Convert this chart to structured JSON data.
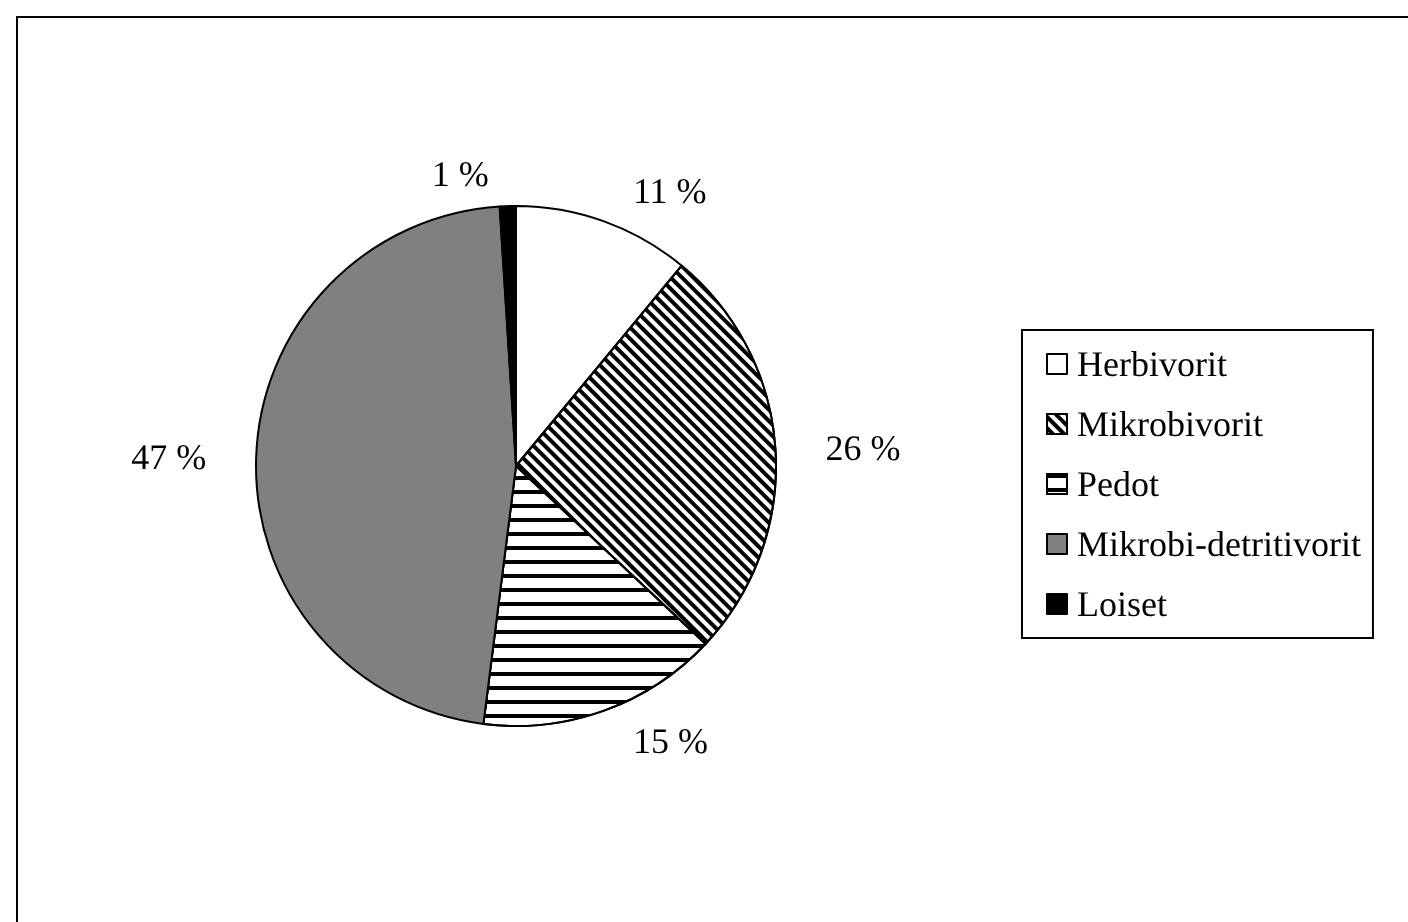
{
  "chart_data": {
    "type": "pie",
    "categories": [
      "Herbivorit",
      "Mikrobivorit",
      "Pedot",
      "Mikrobi-detritivorit",
      "Loiset"
    ],
    "values": [
      11,
      26,
      15,
      47,
      1
    ],
    "value_labels": [
      "11 %",
      "26 %",
      "15 %",
      "47 %",
      "1 %"
    ],
    "colors": [
      "#ffffff",
      "#ffffff",
      "#ffffff",
      "#808080",
      "#000000"
    ],
    "legend": "right"
  }
}
